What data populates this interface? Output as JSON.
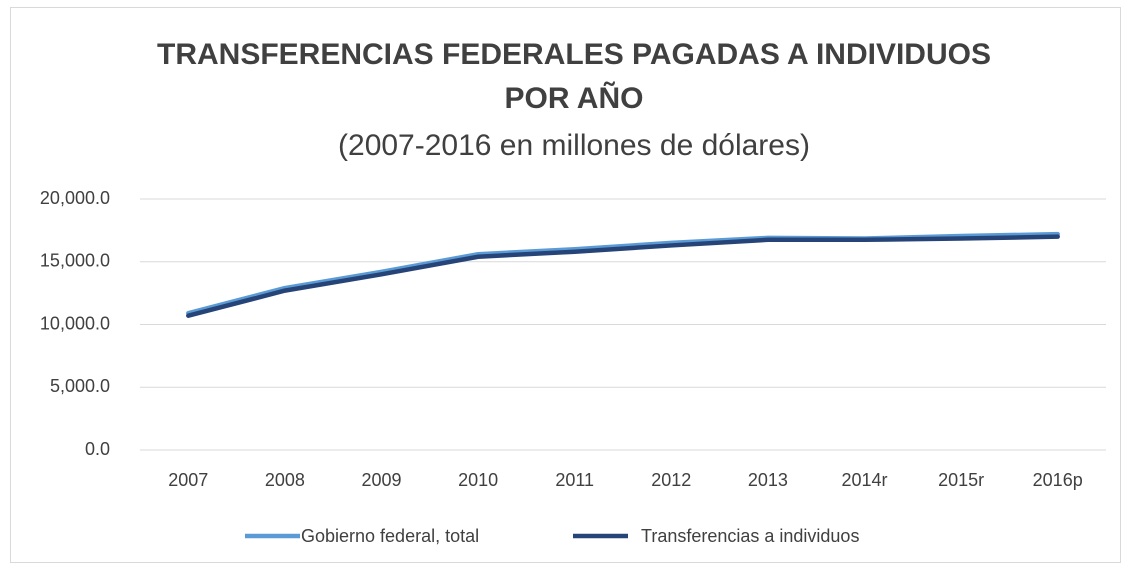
{
  "chart_data": {
    "type": "line",
    "title": [
      "TRANSFERENCIAS FEDERALES PAGADAS A INDIVIDUOS",
      "POR AÑO"
    ],
    "subtitle": "(2007-2016 en millones de dólares)",
    "categories": [
      "2007",
      "2008",
      "2009",
      "2010",
      "2011",
      "2012",
      "2013",
      "2014r",
      "2015r",
      "2016p"
    ],
    "series": [
      {
        "name": "Gobierno federal, total",
        "color": "#5b9bd5",
        "values": [
          10900,
          12900,
          14200,
          15600,
          16000,
          16500,
          16900,
          16850,
          17050,
          17200
        ]
      },
      {
        "name": "Transferencias a individuos",
        "color": "#264478",
        "values": [
          10700,
          12700,
          14000,
          15400,
          15800,
          16300,
          16750,
          16750,
          16850,
          17000
        ]
      }
    ],
    "ylim": [
      0,
      20000
    ],
    "yticks": [
      {
        "value": 0,
        "label": "0.0"
      },
      {
        "value": 5000,
        "label": "5,000.0"
      },
      {
        "value": 10000,
        "label": "10,000.0"
      },
      {
        "value": 15000,
        "label": "15,000.0"
      },
      {
        "value": 20000,
        "label": "20,000.0"
      }
    ],
    "grid": true,
    "legend": "bottom"
  }
}
